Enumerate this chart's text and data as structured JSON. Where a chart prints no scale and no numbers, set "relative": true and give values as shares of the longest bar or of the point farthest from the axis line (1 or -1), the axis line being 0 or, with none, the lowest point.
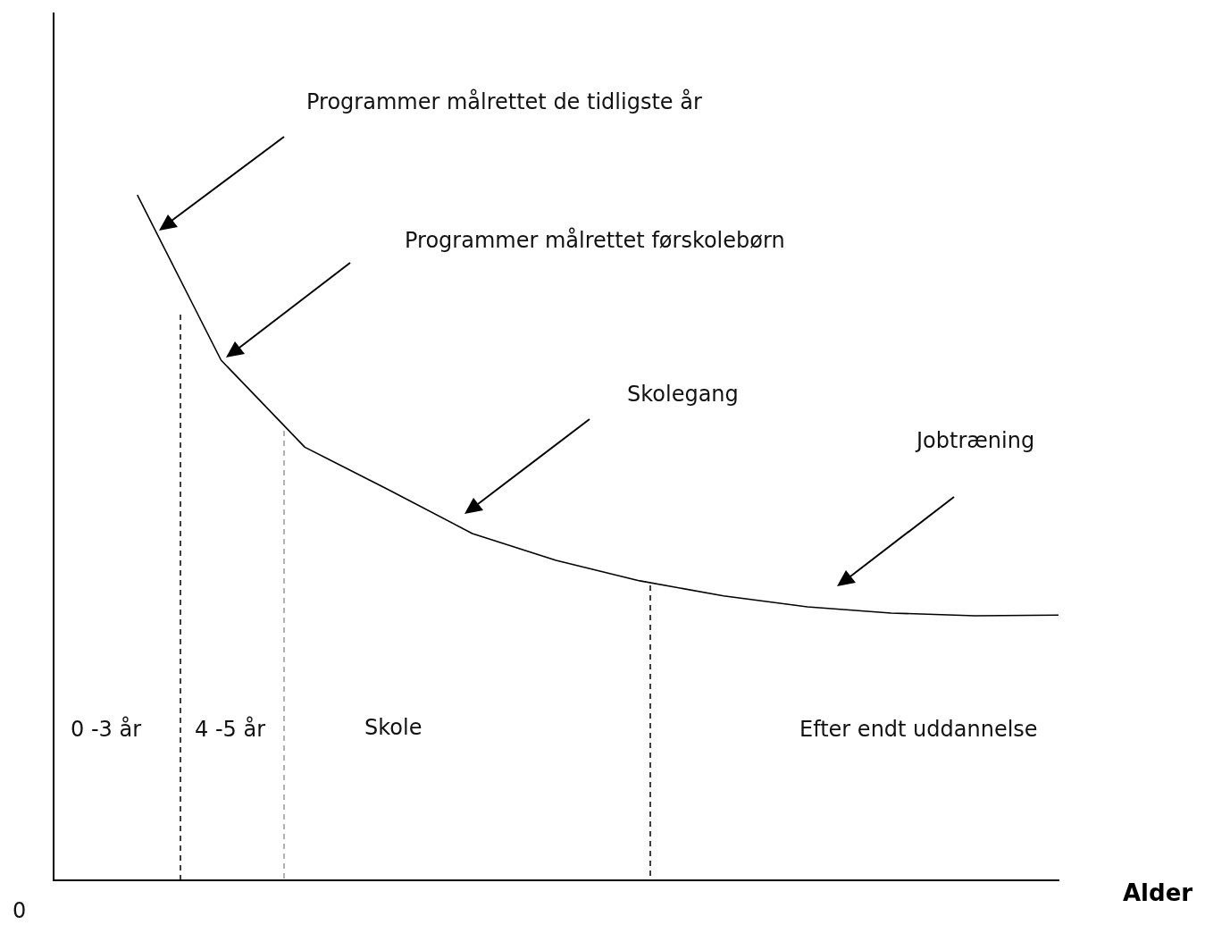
{
  "chart_data": {
    "type": "line",
    "relative": true,
    "xlabel": "Alder",
    "grid": false,
    "legend": false,
    "marker": "none",
    "line_style": "solid",
    "categories": [
      null,
      null,
      null,
      null,
      null,
      null,
      null,
      null,
      null,
      null,
      null,
      null,
      null
    ],
    "series": [
      {
        "color": "#000000",
        "values": [
          null,
          1,
          0.759,
          0.632,
          0.57,
          0.506,
          0.467,
          0.437,
          0.415,
          0.399,
          0.39,
          0.386,
          0.387
        ]
      }
    ],
    "annotations": [
      "Programmer målrettet de tidligste år",
      "Programmer målrettet førskolebørn",
      "Skolegang",
      "Jobtræning",
      "0 -3 år",
      "4 -5 år",
      "Skole",
      "Efter endt uddannelse",
      "0"
    ]
  }
}
